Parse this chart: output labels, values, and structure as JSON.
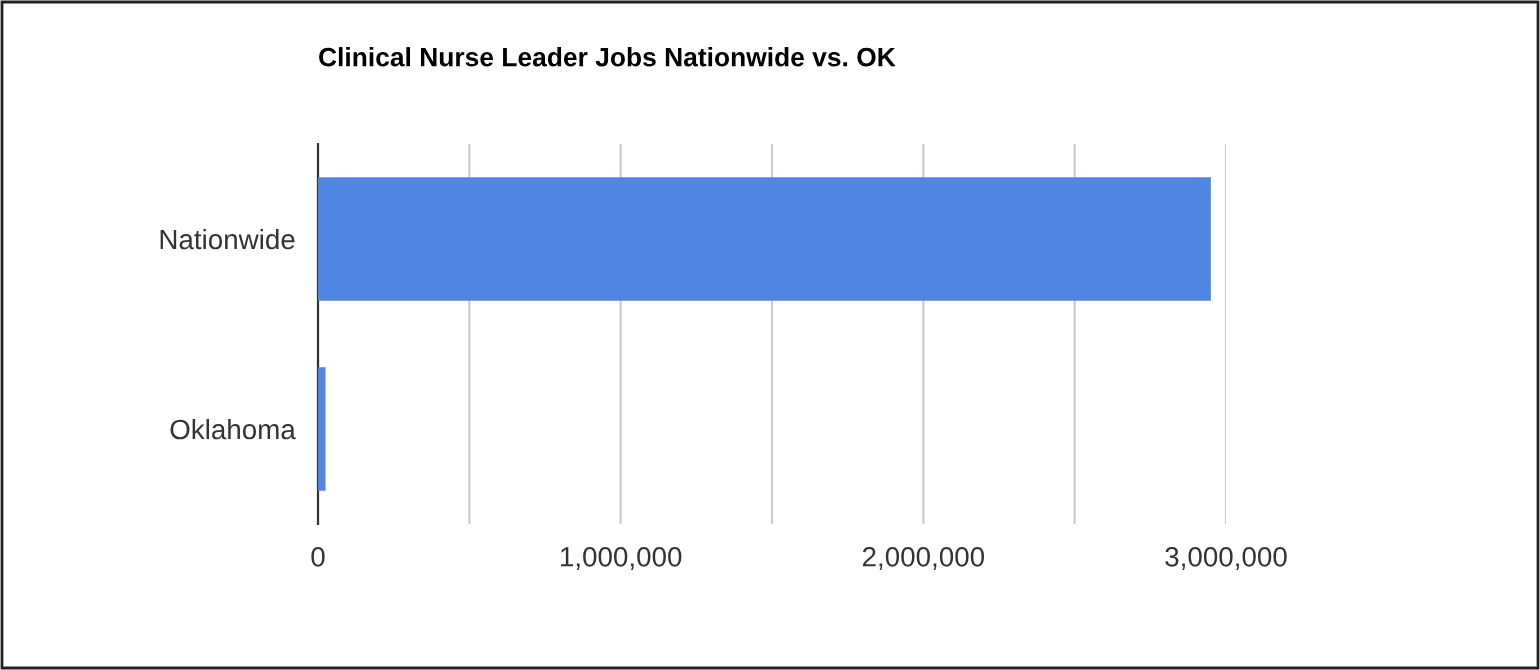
{
  "chart_data": {
    "type": "bar",
    "orientation": "horizontal",
    "title": "Clinical Nurse Leader Jobs Nationwide vs. OK",
    "categories": [
      "Nationwide",
      "Oklahoma"
    ],
    "values": [
      2950000,
      25000
    ],
    "color": "#5086e2",
    "xlim": [
      0,
      3000000
    ],
    "xticks": [
      0,
      {
        "value": 500000,
        "label": null
      },
      {
        "value": 1000000,
        "label": "1,000,000"
      },
      {
        "value": 1500000,
        "label": null
      },
      {
        "value": 2000000,
        "label": "2,000,000"
      },
      {
        "value": 2500000,
        "label": null
      },
      {
        "value": 3000000,
        "label": "3,000,000"
      }
    ],
    "grid": "x",
    "legend": false
  }
}
